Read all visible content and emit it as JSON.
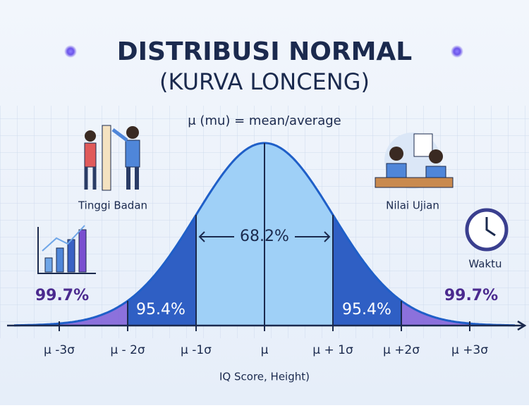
{
  "title": "DISTRIBUSI NORMAL",
  "subtitle": "(KURVA LONCENG)",
  "mean_label": "μ (mu) = mean/average",
  "examples": [
    "Tinggi Badan",
    "Nilai Ujian",
    "Waktu"
  ],
  "regions": {
    "inner": "68.2%",
    "middle_left": "95.4%",
    "middle_right": "95.4%",
    "outer_left": "99.7%",
    "outer_right": "99.7%"
  },
  "axis_labels": [
    "μ -3σ",
    "μ - 2σ",
    "μ -1σ",
    "μ",
    "μ + 1σ",
    "μ +2σ",
    "μ +3σ"
  ],
  "axis_title": "IQ Score, Height)"
}
